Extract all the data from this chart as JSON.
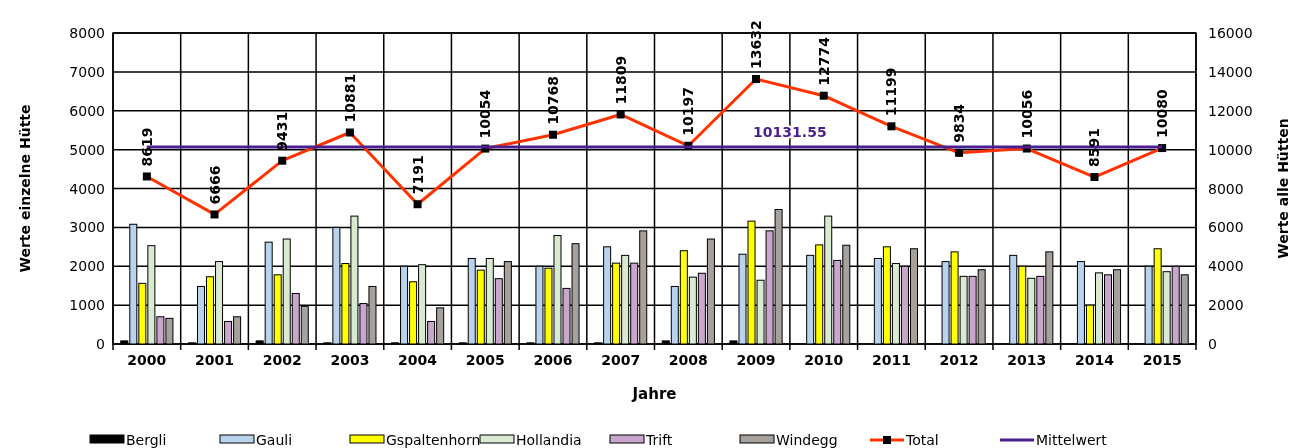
{
  "chart_data": {
    "type": "bar",
    "xlabel": "Jahre",
    "ylabel": "Werte einzelne Hütte",
    "y2label": "Werte alle Hütten",
    "categories": [
      "2000",
      "2001",
      "2002",
      "2003",
      "2004",
      "2005",
      "2006",
      "2007",
      "2008",
      "2009",
      "2010",
      "2011",
      "2012",
      "2013",
      "2014",
      "2015"
    ],
    "series": [
      {
        "name": "Bergli",
        "color": "#000000",
        "values": [
          80,
          30,
          80,
          30,
          30,
          30,
          30,
          30,
          80,
          80,
          0,
          0,
          0,
          0,
          0,
          0
        ]
      },
      {
        "name": "Gauli",
        "color": "#b9d3ee",
        "values": [
          3080,
          1480,
          2620,
          3000,
          2000,
          2200,
          2000,
          2500,
          1480,
          2310,
          2280,
          2200,
          2120,
          2280,
          2120,
          2000
        ]
      },
      {
        "name": "Gspaltenhorn",
        "color": "#ffff00",
        "values": [
          1560,
          1730,
          1780,
          2070,
          1600,
          1900,
          1950,
          2080,
          2400,
          3160,
          2550,
          2500,
          2370,
          2000,
          1000,
          2450
        ]
      },
      {
        "name": "Hollandia",
        "color": "#d9ead3",
        "values": [
          2530,
          2120,
          2700,
          3290,
          2040,
          2200,
          2790,
          2280,
          1720,
          1640,
          3290,
          2070,
          1740,
          1690,
          1830,
          1860
        ]
      },
      {
        "name": "Trift",
        "color": "#c9a7cc",
        "values": [
          700,
          580,
          1300,
          1040,
          580,
          1680,
          1430,
          2080,
          1820,
          2910,
          2150,
          2000,
          1740,
          1740,
          1780,
          2000
        ]
      },
      {
        "name": "Windegg",
        "color": "#a6a19c",
        "values": [
          660,
          700,
          970,
          1480,
          930,
          2120,
          2580,
          2910,
          2700,
          3460,
          2540,
          2450,
          1910,
          2370,
          1910,
          1780
        ]
      },
      {
        "name": "Total",
        "type": "line",
        "axis": "y2",
        "color": "#ff3300",
        "marker": "square",
        "values": [
          8619,
          6666,
          9431,
          10881,
          7191,
          10054,
          10768,
          11809,
          10197,
          13632,
          12774,
          11199,
          9834,
          10056,
          8591,
          10080
        ],
        "value_labels": [
          "8619",
          "6666",
          "9431",
          "10881",
          "7191",
          "10054",
          "10768",
          "11809",
          "10197",
          "13632",
          "12774",
          "11199",
          "9834",
          "10056",
          "8591",
          "10080"
        ]
      },
      {
        "name": "Mittelwert",
        "type": "line",
        "axis": "y2",
        "color": "#4b1f8f",
        "marker": "none",
        "values": [
          10131.55,
          10131.55,
          10131.55,
          10131.55,
          10131.55,
          10131.55,
          10131.55,
          10131.55,
          10131.55,
          10131.55,
          10131.55,
          10131.55,
          10131.55,
          10131.55,
          10131.55,
          10131.55
        ],
        "value_labels": [
          null,
          null,
          null,
          null,
          null,
          null,
          null,
          null,
          null,
          null,
          "10131.55",
          null,
          null,
          null,
          null,
          null
        ]
      }
    ],
    "ylim": [
      0,
      8000
    ],
    "yticks": [
      0,
      1000,
      2000,
      3000,
      4000,
      5000,
      6000,
      7000,
      8000
    ],
    "y2lim": [
      0,
      16000
    ],
    "y2ticks": [
      0,
      2000,
      4000,
      6000,
      8000,
      10000,
      12000,
      14000,
      16000
    ],
    "grid": true,
    "legend": "bottom"
  }
}
